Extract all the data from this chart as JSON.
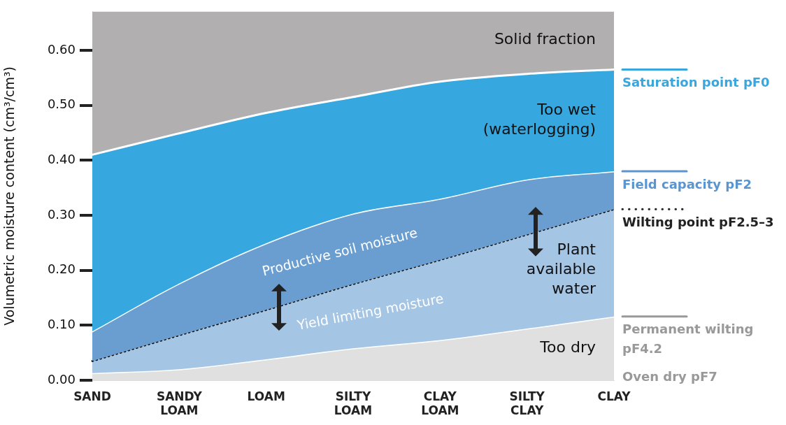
{
  "chart_data": {
    "type": "area",
    "ylabel": "Volumetric moisture content (cm³/cm³)",
    "categories": [
      "SAND",
      "SANDY LOAM",
      "LOAM",
      "SILTY LOAM",
      "CLAY LOAM",
      "SILTY CLAY",
      "CLAY"
    ],
    "series": [
      {
        "name": "Too dry",
        "color": "#e0e0e0",
        "values": [
          0.013,
          0.02,
          0.038,
          0.058,
          0.073,
          0.094,
          0.116
        ]
      },
      {
        "name": "Yield limiting moisture",
        "color": "#a5c5e5",
        "line_style": "dotted",
        "values": [
          0.035,
          0.082,
          0.128,
          0.175,
          0.219,
          0.265,
          0.311
        ]
      },
      {
        "name": "Productive soil moisture",
        "color": "#6a9ed0",
        "values": [
          0.089,
          0.176,
          0.249,
          0.303,
          0.33,
          0.365,
          0.38
        ]
      },
      {
        "name": "Too wet (waterlogging)",
        "color": "#36a8df",
        "values": [
          0.41,
          0.449,
          0.486,
          0.515,
          0.543,
          0.557,
          0.565
        ]
      }
    ],
    "bands": [
      {
        "axis": "y",
        "from": 0,
        "to": 0.67,
        "label": "Solid fraction",
        "color": "#b1afb0"
      }
    ],
    "annotations": [
      "Saturation point pF0",
      "Field capacity pF2",
      "Wilting point pF2.5–3",
      "Permanent wilting pF4.2",
      "Oven dry pF7",
      {
        "text": "Plant available water",
        "x": "CLAY",
        "y": 0.2
      }
    ],
    "ylim": [
      0,
      0.67
    ],
    "yticks": [
      {
        "value": 0,
        "label": "0.00"
      },
      {
        "value": 0.1,
        "label": "0.10"
      },
      {
        "value": 0.2,
        "label": "0.20"
      },
      {
        "value": 0.3,
        "label": "0.30"
      },
      {
        "value": 0.4,
        "label": "0.40"
      },
      {
        "value": 0.5,
        "label": "0.50"
      },
      {
        "value": 0.6,
        "label": "0.60"
      }
    ],
    "grid": false,
    "legend": false
  }
}
